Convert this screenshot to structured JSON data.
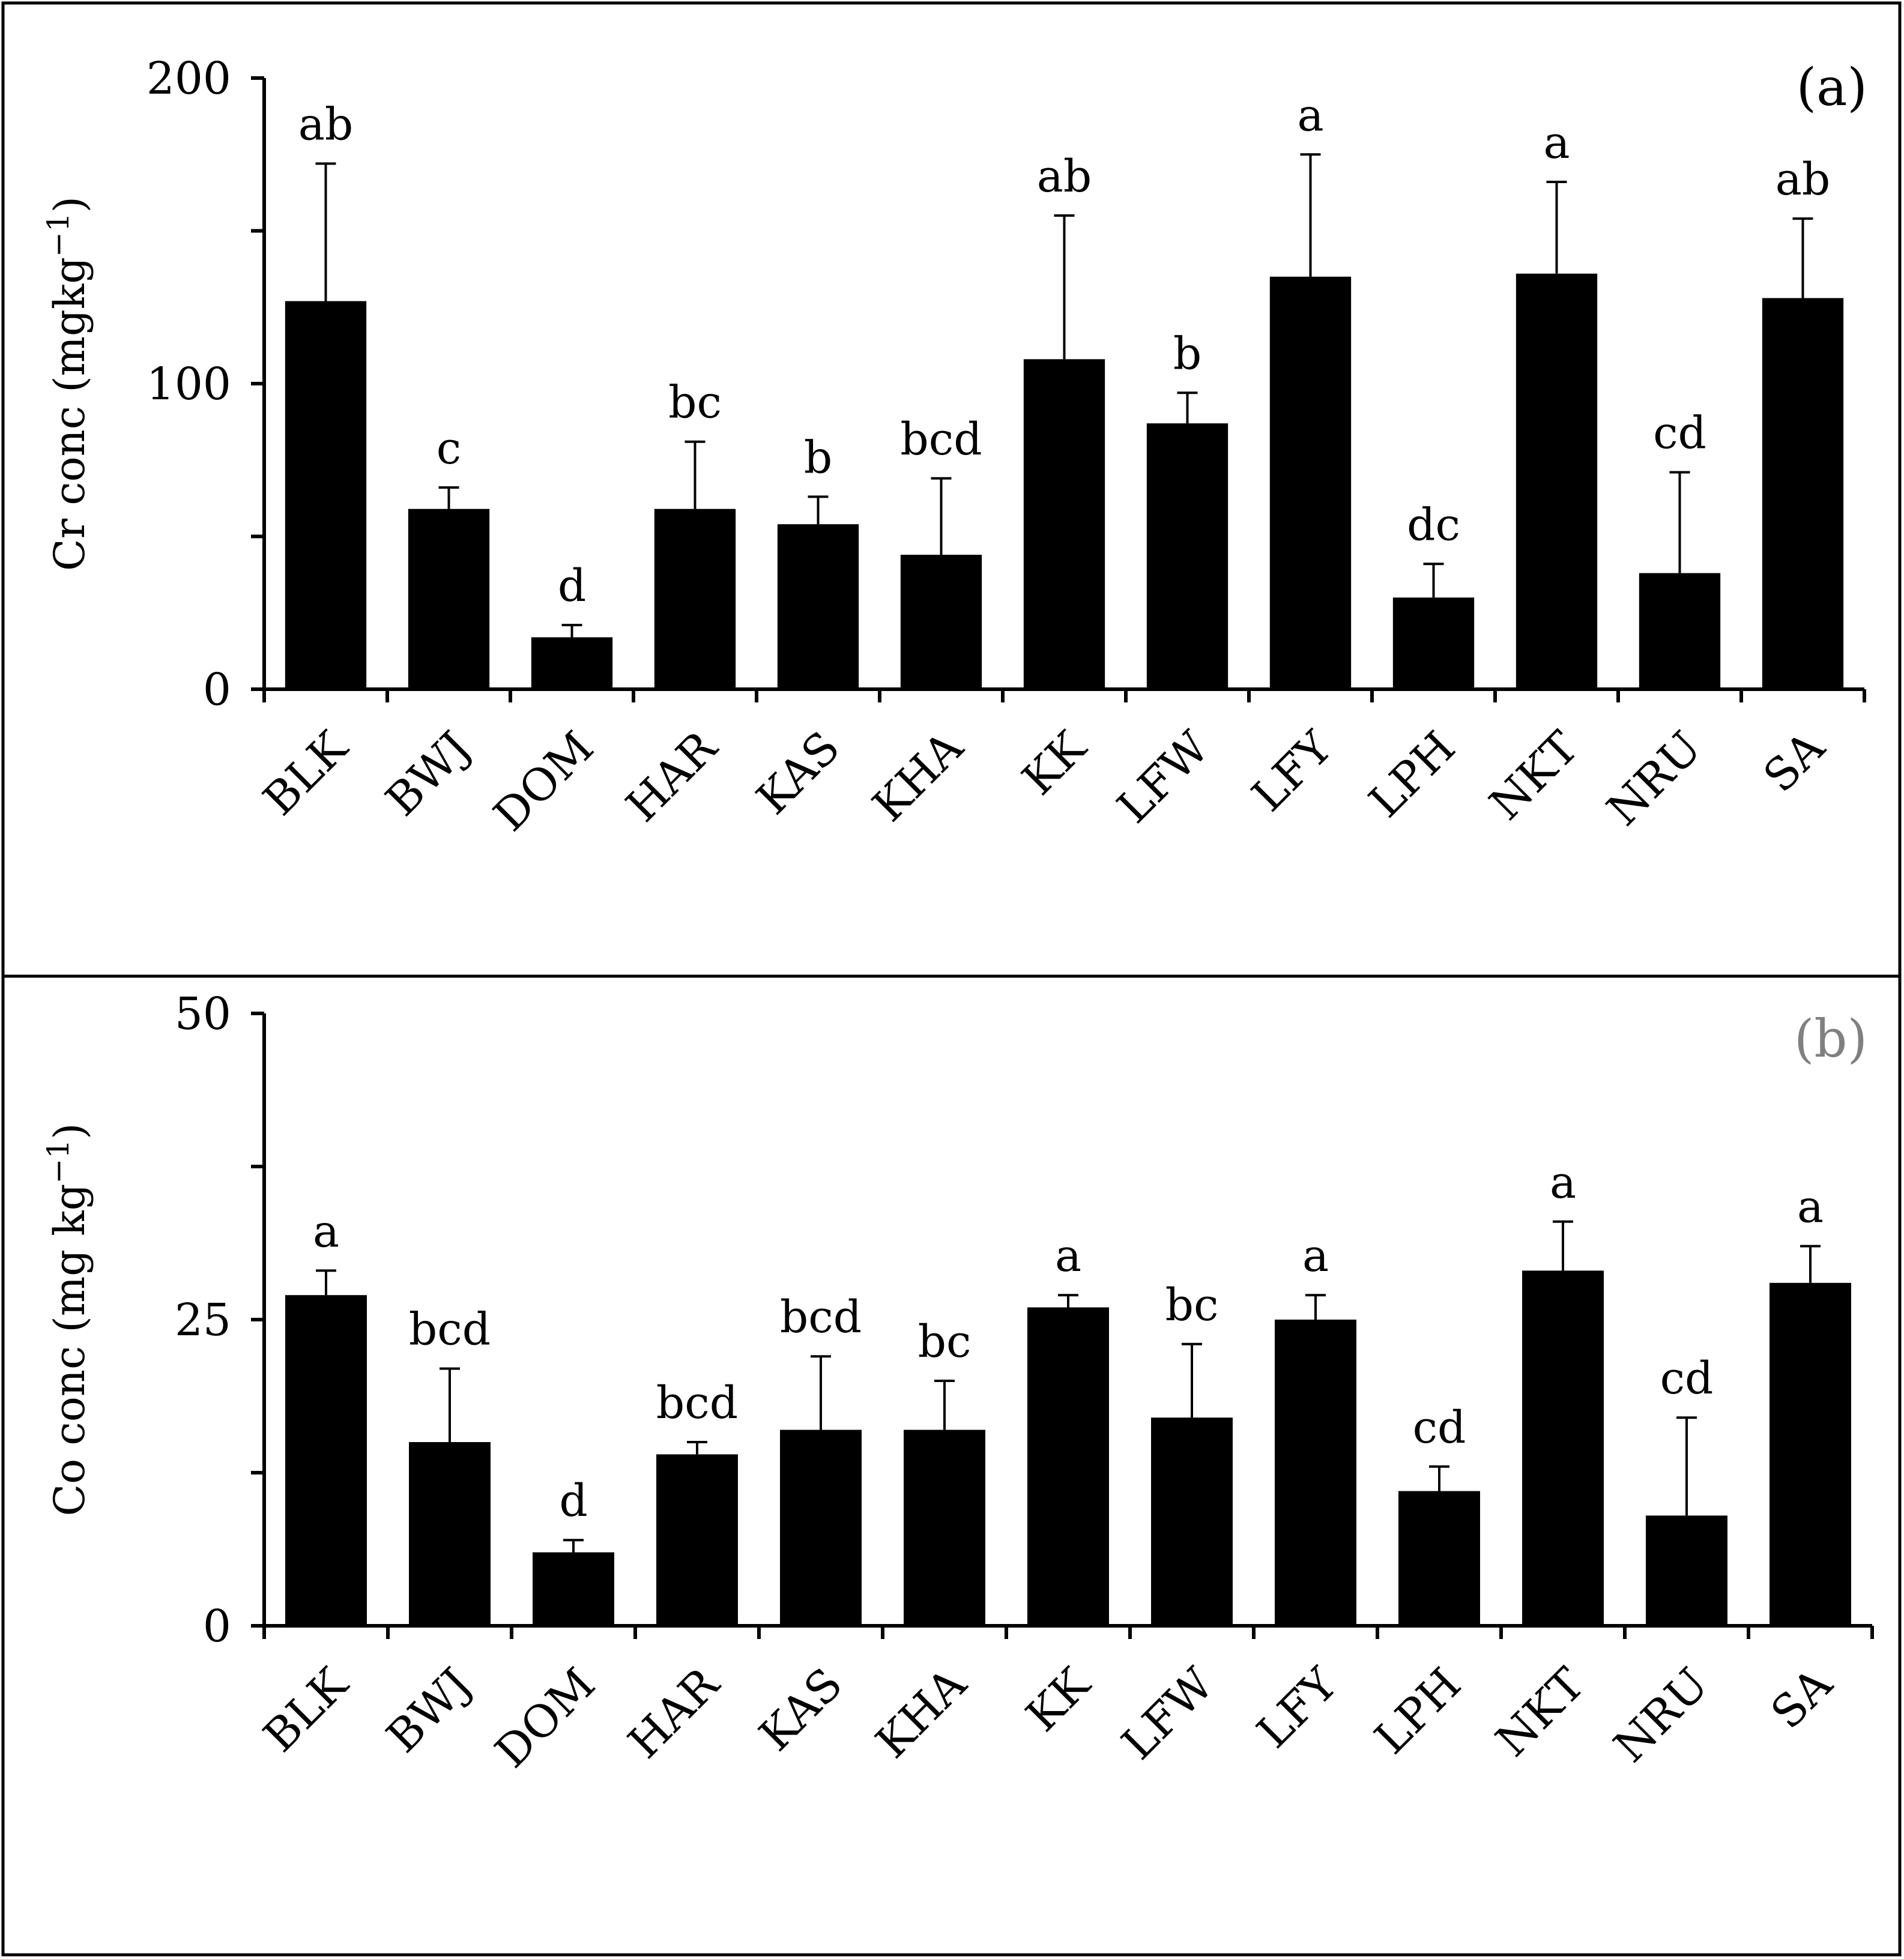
{
  "chart_data": [
    {
      "type": "bar",
      "panel_label": "(a)",
      "panel_label_color": "#000000",
      "ylabel": "Cr conc (mgkg",
      "ylabel_sup": "−1",
      "ylabel_suffix": ")",
      "ylim": [
        0,
        200
      ],
      "yticks": [
        0,
        100,
        200
      ],
      "ytick_labels": [
        "0",
        "100",
        "200"
      ],
      "categories": [
        "BLK",
        "BWJ",
        "DOM",
        "HAR",
        "KAS",
        "KHA",
        "KK",
        "LFW",
        "LFY",
        "LPH",
        "NKT",
        "NRU",
        "SA"
      ],
      "values": [
        127,
        59,
        17,
        59,
        54,
        44,
        108,
        87,
        135,
        30,
        136,
        38,
        128
      ],
      "errors": [
        45,
        7,
        4,
        22,
        9,
        25,
        47,
        10,
        40,
        11,
        30,
        33,
        26
      ],
      "significance": [
        "ab",
        "c",
        "d",
        "bc",
        "b",
        "bcd",
        "ab",
        "b",
        "a",
        "dc",
        "a",
        "cd",
        "ab"
      ],
      "bar_color": "#000000"
    },
    {
      "type": "bar",
      "panel_label": "(b)",
      "panel_label_color": "#808080",
      "ylabel": "Co conc (mg kg",
      "ylabel_sup": "−1",
      "ylabel_suffix": ")",
      "ylim": [
        0,
        50
      ],
      "yticks": [
        0,
        25,
        50
      ],
      "ytick_labels": [
        "0",
        "25",
        "50"
      ],
      "categories": [
        "BLK",
        "BWJ",
        "DOM",
        "HAR",
        "KAS",
        "KHA",
        "KK",
        "LFW",
        "LFY",
        "LPH",
        "NKT",
        "NRU",
        "SA"
      ],
      "values": [
        27,
        15,
        6,
        14,
        16,
        16,
        26,
        17,
        25,
        11,
        29,
        9,
        28
      ],
      "errors": [
        2,
        6,
        1,
        1,
        6,
        4,
        1,
        6,
        2,
        2,
        4,
        8,
        3
      ],
      "significance": [
        "a",
        "bcd",
        "d",
        "bcd",
        "bcd",
        "bc",
        "a",
        "bc",
        "a",
        "cd",
        "a",
        "cd",
        "a"
      ],
      "bar_color": "#000000"
    }
  ]
}
